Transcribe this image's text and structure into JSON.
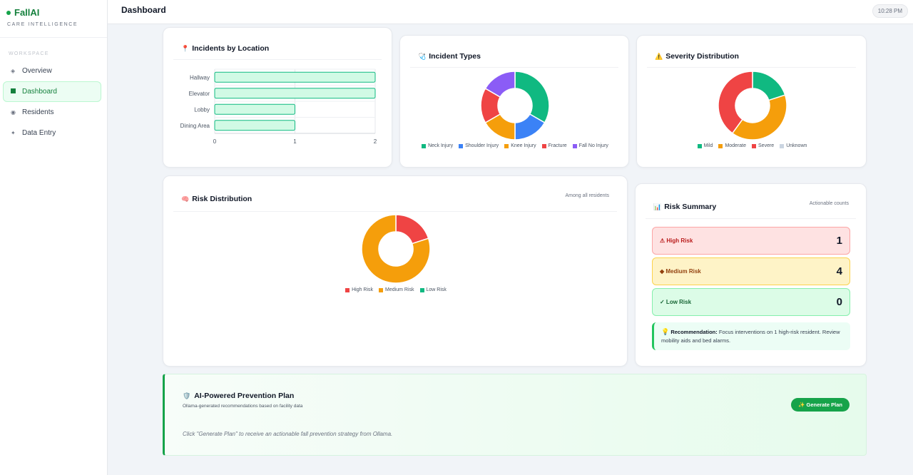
{
  "app": {
    "name": "FallAI",
    "tagline": "CARE INTELLIGENCE"
  },
  "sidebar": {
    "section_label": "WORKSPACE",
    "items": [
      {
        "label": "Overview",
        "icon": "diamond-icon",
        "active": false
      },
      {
        "label": "Dashboard",
        "icon": "square-icon",
        "active": true
      },
      {
        "label": "Residents",
        "icon": "dot-icon",
        "active": false
      },
      {
        "label": "Data Entry",
        "icon": "sparkle-icon",
        "active": false
      }
    ]
  },
  "header": {
    "title": "Dashboard",
    "time": "10:28 PM"
  },
  "cards": {
    "location": {
      "icon": "pin-icon",
      "title": "Incidents by Location"
    },
    "types": {
      "icon": "stethoscope-icon",
      "title": "Incident Types"
    },
    "severity": {
      "icon": "warning-icon",
      "title": "Severity Distribution"
    },
    "risk": {
      "icon": "brain-icon",
      "title": "Risk Distribution",
      "note": "Among all residents"
    },
    "summary": {
      "icon": "bar-chart-icon",
      "title": "Risk Summary",
      "note": "Actionable counts",
      "rows": [
        {
          "label": "⚠ High Risk",
          "value": "1"
        },
        {
          "label": "◆ Medium Risk",
          "value": "4"
        },
        {
          "label": "✓ Low Risk",
          "value": "0"
        }
      ],
      "recommendation_label": "Recommendation:",
      "recommendation_text": " Focus interventions on 1 high-risk resident. Review mobility aids and bed alarms."
    }
  },
  "ai_plan": {
    "icon": "shield-icon",
    "title": "AI-Powered Prevention Plan",
    "subtitle": "Ollama-generated recommendations based on facility data",
    "button_label": "✨ Generate Plan",
    "hint": "Click \"Generate Plan\" to receive an actionable fall prevention strategy from Ollama."
  },
  "colors": {
    "green": "#10b981",
    "blue": "#3b82f6",
    "orange": "#f59e0b",
    "red": "#ef4444",
    "purple": "#8b5cf6",
    "grey": "#cbd5e1",
    "bar_fill": "#d1fae5",
    "bar_stroke": "#10b981"
  },
  "chart_data": [
    {
      "type": "bar",
      "orientation": "horizontal",
      "categories": [
        "Hallway",
        "Elevator",
        "Lobby",
        "Dining Area"
      ],
      "values": [
        2,
        2,
        1,
        1
      ],
      "xlim": [
        0,
        2
      ],
      "xticks": [
        "0",
        "1",
        "2"
      ],
      "grid": true
    },
    {
      "type": "pie",
      "donut": true,
      "labels": [
        "Neck Injury",
        "Shoulder Injury",
        "Knee Injury",
        "Fracture",
        "Fall No Injury"
      ],
      "values": [
        2,
        1,
        1,
        1,
        1
      ],
      "colors": [
        "#10b981",
        "#3b82f6",
        "#f59e0b",
        "#ef4444",
        "#8b5cf6"
      ],
      "legend": "bottom"
    },
    {
      "type": "pie",
      "donut": true,
      "labels": [
        "Mild",
        "Moderate",
        "Severe",
        "Unknown"
      ],
      "values": [
        1,
        2,
        2,
        0
      ],
      "colors": [
        "#10b981",
        "#f59e0b",
        "#ef4444",
        "#cbd5e1"
      ],
      "legend": "bottom"
    },
    {
      "type": "pie",
      "donut": true,
      "labels": [
        "High Risk",
        "Medium Risk",
        "Low Risk"
      ],
      "values": [
        1,
        4,
        0
      ],
      "colors": [
        "#ef4444",
        "#f59e0b",
        "#10b981"
      ],
      "legend": "bottom"
    }
  ]
}
